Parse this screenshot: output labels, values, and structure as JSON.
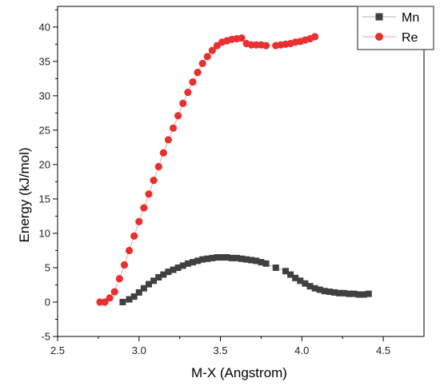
{
  "chart_data": {
    "type": "scatter",
    "xlabel": "M-X (Angstrom)",
    "ylabel": "Energy (kJ/mol)",
    "xlim": [
      2.5,
      4.75
    ],
    "ylim": [
      -5,
      43
    ],
    "xticks": [
      "2.5",
      "3.0",
      "3.5",
      "4.0",
      "4.5"
    ],
    "yticks": [
      "-5",
      "0",
      "5",
      "10",
      "15",
      "20",
      "25",
      "30",
      "35",
      "40"
    ],
    "legend_position": "top-right",
    "series": [
      {
        "name": "Mn",
        "marker": "square",
        "color": "#404040",
        "line_color": "#b0b0b0",
        "x": [
          2.9,
          2.94,
          2.97,
          3.0,
          3.03,
          3.06,
          3.09,
          3.12,
          3.15,
          3.18,
          3.21,
          3.24,
          3.27,
          3.3,
          3.33,
          3.36,
          3.39,
          3.42,
          3.45,
          3.48,
          3.51,
          3.54,
          3.57,
          3.6,
          3.63,
          3.66,
          3.69,
          3.72,
          3.75,
          3.78,
          3.84,
          3.9,
          3.93,
          3.96,
          3.99,
          4.02,
          4.05,
          4.08,
          4.11,
          4.14,
          4.17,
          4.2,
          4.23,
          4.26,
          4.29,
          4.32,
          4.35,
          4.38,
          4.41
        ],
        "y": [
          0.0,
          0.4,
          0.8,
          1.4,
          2.0,
          2.6,
          3.1,
          3.6,
          4.0,
          4.4,
          4.7,
          5.0,
          5.3,
          5.6,
          5.8,
          6.0,
          6.2,
          6.3,
          6.4,
          6.5,
          6.5,
          6.5,
          6.4,
          6.4,
          6.3,
          6.2,
          6.1,
          6.0,
          5.8,
          5.6,
          5.0,
          4.5,
          4.0,
          3.5,
          3.1,
          2.7,
          2.3,
          2.0,
          1.8,
          1.6,
          1.5,
          1.4,
          1.3,
          1.3,
          1.2,
          1.2,
          1.1,
          1.1,
          1.2
        ]
      },
      {
        "name": "Re",
        "marker": "circle",
        "color": "#e83030",
        "line_color": "#f2a0a0",
        "x": [
          2.76,
          2.79,
          2.82,
          2.85,
          2.88,
          2.91,
          2.94,
          2.97,
          3.0,
          3.03,
          3.06,
          3.09,
          3.12,
          3.15,
          3.18,
          3.21,
          3.24,
          3.27,
          3.3,
          3.33,
          3.36,
          3.39,
          3.42,
          3.45,
          3.48,
          3.51,
          3.54,
          3.57,
          3.6,
          3.63,
          3.66,
          3.69,
          3.72,
          3.75,
          3.78,
          3.84,
          3.87,
          3.9,
          3.93,
          3.96,
          3.99,
          4.02,
          4.05,
          4.08
        ],
        "y": [
          0.0,
          0.0,
          0.6,
          1.5,
          3.4,
          5.4,
          7.5,
          9.6,
          11.7,
          13.7,
          15.7,
          17.7,
          19.7,
          21.7,
          23.6,
          25.3,
          27.1,
          28.9,
          30.5,
          32.0,
          33.4,
          34.7,
          35.7,
          36.6,
          37.3,
          37.8,
          38.0,
          38.2,
          38.3,
          38.4,
          37.6,
          37.4,
          37.4,
          37.4,
          37.3,
          37.3,
          37.4,
          37.5,
          37.6,
          37.8,
          37.9,
          38.1,
          38.3,
          38.6
        ]
      }
    ]
  }
}
